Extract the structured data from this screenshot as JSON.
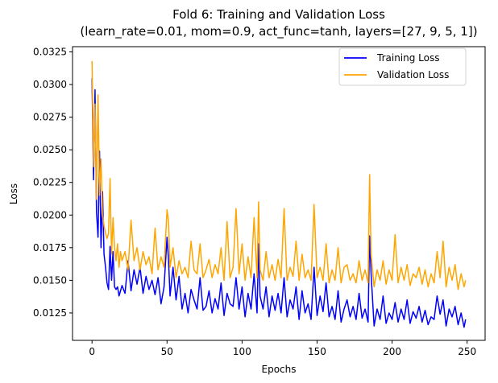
{
  "chart_data": {
    "type": "line",
    "title_line1": "Fold 6: Training and Validation Loss",
    "title_line2": "(learn_rate=0.01, mom=0.9, act_func=tanh, layers=[27, 9, 5, 1])",
    "xlabel": "Epochs",
    "ylabel": "Loss",
    "xlim": [
      -13,
      262
    ],
    "ylim": [
      0.0104,
      0.0329
    ],
    "xticks": [
      0,
      50,
      100,
      150,
      200,
      250
    ],
    "xtick_labels": [
      "0",
      "50",
      "100",
      "150",
      "200",
      "250"
    ],
    "yticks": [
      0.0125,
      0.015,
      0.0175,
      0.02,
      0.0225,
      0.025,
      0.0275,
      0.03,
      0.0325
    ],
    "ytick_labels": [
      "0.0125",
      "0.0150",
      "0.0175",
      "0.0200",
      "0.0225",
      "0.0250",
      "0.0275",
      "0.0300",
      "0.0325"
    ],
    "grid": false,
    "legend_position": "top-right",
    "series": [
      {
        "name": "Training Loss",
        "color": "#0000ff",
        "x": [
          0,
          1,
          2,
          3,
          4,
          5,
          6,
          7,
          8,
          9,
          10,
          11,
          12,
          13,
          14,
          15,
          16,
          17,
          18,
          19,
          20,
          22,
          24,
          26,
          28,
          30,
          32,
          34,
          36,
          38,
          40,
          42,
          44,
          46,
          48,
          50,
          51,
          52,
          54,
          56,
          58,
          60,
          62,
          64,
          66,
          68,
          70,
          72,
          74,
          76,
          78,
          80,
          82,
          84,
          86,
          88,
          90,
          92,
          94,
          96,
          98,
          100,
          102,
          104,
          106,
          108,
          110,
          111,
          112,
          114,
          116,
          118,
          120,
          122,
          124,
          126,
          128,
          130,
          132,
          134,
          136,
          138,
          140,
          142,
          144,
          146,
          148,
          150,
          152,
          154,
          156,
          158,
          160,
          162,
          164,
          166,
          168,
          170,
          172,
          174,
          176,
          178,
          180,
          182,
          184,
          185,
          186,
          188,
          190,
          192,
          194,
          196,
          198,
          200,
          202,
          204,
          206,
          208,
          210,
          212,
          214,
          216,
          218,
          220,
          222,
          224,
          226,
          228,
          230,
          232,
          234,
          236,
          238,
          240,
          242,
          244,
          246,
          248,
          249
        ],
        "values": [
          0.0305,
          0.0227,
          0.0296,
          0.0202,
          0.0183,
          0.0249,
          0.0175,
          0.0218,
          0.017,
          0.016,
          0.0148,
          0.0143,
          0.0176,
          0.015,
          0.0172,
          0.0145,
          0.0143,
          0.0145,
          0.0138,
          0.0142,
          0.0146,
          0.014,
          0.0165,
          0.0142,
          0.0158,
          0.0147,
          0.016,
          0.014,
          0.0153,
          0.0143,
          0.015,
          0.0139,
          0.0152,
          0.0132,
          0.0145,
          0.0183,
          0.0165,
          0.0138,
          0.016,
          0.0135,
          0.0153,
          0.0128,
          0.014,
          0.0125,
          0.0143,
          0.0135,
          0.0128,
          0.0152,
          0.0127,
          0.013,
          0.0142,
          0.0125,
          0.0136,
          0.0128,
          0.0148,
          0.0123,
          0.014,
          0.0132,
          0.013,
          0.0152,
          0.0128,
          0.0145,
          0.0122,
          0.014,
          0.0128,
          0.0155,
          0.0125,
          0.0178,
          0.0138,
          0.0128,
          0.0145,
          0.0122,
          0.0138,
          0.0127,
          0.014,
          0.0125,
          0.0152,
          0.0122,
          0.0135,
          0.0128,
          0.0145,
          0.012,
          0.0142,
          0.0125,
          0.0132,
          0.012,
          0.016,
          0.0123,
          0.0138,
          0.0126,
          0.0148,
          0.0122,
          0.013,
          0.012,
          0.0142,
          0.0118,
          0.0128,
          0.0135,
          0.0122,
          0.013,
          0.012,
          0.014,
          0.0121,
          0.0128,
          0.0118,
          0.0184,
          0.0155,
          0.0115,
          0.0128,
          0.012,
          0.0138,
          0.0117,
          0.0125,
          0.012,
          0.0133,
          0.0118,
          0.0128,
          0.012,
          0.0135,
          0.0117,
          0.0126,
          0.0121,
          0.013,
          0.0118,
          0.0127,
          0.0116,
          0.0122,
          0.012,
          0.0138,
          0.0124,
          0.0135,
          0.0115,
          0.0128,
          0.0122,
          0.013,
          0.0116,
          0.0125,
          0.0114,
          0.012
        ]
      },
      {
        "name": "Validation Loss",
        "color": "#ffa500",
        "x": [
          0,
          1,
          2,
          3,
          4,
          5,
          6,
          7,
          8,
          9,
          10,
          11,
          12,
          13,
          14,
          15,
          16,
          17,
          18,
          19,
          20,
          22,
          24,
          26,
          28,
          30,
          32,
          34,
          36,
          38,
          40,
          42,
          44,
          46,
          48,
          50,
          51,
          52,
          54,
          56,
          58,
          60,
          62,
          64,
          66,
          68,
          70,
          72,
          74,
          76,
          78,
          80,
          82,
          84,
          86,
          88,
          90,
          92,
          94,
          96,
          98,
          100,
          102,
          104,
          106,
          108,
          110,
          111,
          112,
          114,
          116,
          118,
          120,
          122,
          124,
          126,
          128,
          130,
          132,
          134,
          136,
          138,
          140,
          142,
          144,
          146,
          148,
          150,
          152,
          154,
          156,
          158,
          160,
          162,
          164,
          166,
          168,
          170,
          172,
          174,
          176,
          178,
          180,
          182,
          184,
          185,
          186,
          188,
          190,
          192,
          194,
          196,
          198,
          200,
          202,
          204,
          206,
          208,
          210,
          212,
          214,
          216,
          218,
          220,
          222,
          224,
          226,
          228,
          230,
          232,
          234,
          236,
          238,
          240,
          242,
          244,
          246,
          248,
          249
        ],
        "values": [
          0.0318,
          0.0237,
          0.0285,
          0.0212,
          0.0292,
          0.0215,
          0.0243,
          0.02,
          0.0192,
          0.0186,
          0.0182,
          0.0186,
          0.0228,
          0.017,
          0.0198,
          0.0175,
          0.0165,
          0.0178,
          0.016,
          0.0172,
          0.0165,
          0.0172,
          0.0158,
          0.0196,
          0.0165,
          0.0175,
          0.0158,
          0.0172,
          0.0162,
          0.0168,
          0.0155,
          0.019,
          0.0158,
          0.0168,
          0.016,
          0.0204,
          0.0195,
          0.016,
          0.0175,
          0.0152,
          0.0165,
          0.0155,
          0.016,
          0.0152,
          0.018,
          0.0158,
          0.0155,
          0.0178,
          0.0152,
          0.0158,
          0.0166,
          0.0152,
          0.0162,
          0.0155,
          0.0175,
          0.015,
          0.0195,
          0.0152,
          0.016,
          0.0205,
          0.0155,
          0.0178,
          0.015,
          0.0168,
          0.0152,
          0.0198,
          0.0152,
          0.021,
          0.0158,
          0.015,
          0.0172,
          0.0152,
          0.0162,
          0.015,
          0.0166,
          0.0152,
          0.0205,
          0.015,
          0.016,
          0.0153,
          0.018,
          0.015,
          0.017,
          0.0152,
          0.0158,
          0.015,
          0.0208,
          0.0152,
          0.016,
          0.015,
          0.0178,
          0.0148,
          0.0158,
          0.015,
          0.0175,
          0.0148,
          0.016,
          0.0162,
          0.015,
          0.0155,
          0.0148,
          0.0165,
          0.015,
          0.0158,
          0.0148,
          0.0231,
          0.017,
          0.0145,
          0.0158,
          0.015,
          0.0165,
          0.0147,
          0.0158,
          0.015,
          0.0185,
          0.0148,
          0.016,
          0.015,
          0.0162,
          0.0146,
          0.0155,
          0.0152,
          0.016,
          0.0147,
          0.0158,
          0.0145,
          0.0155,
          0.0148,
          0.0172,
          0.0152,
          0.018,
          0.0145,
          0.016,
          0.015,
          0.0162,
          0.0143,
          0.0155,
          0.0145,
          0.015
        ]
      }
    ]
  }
}
